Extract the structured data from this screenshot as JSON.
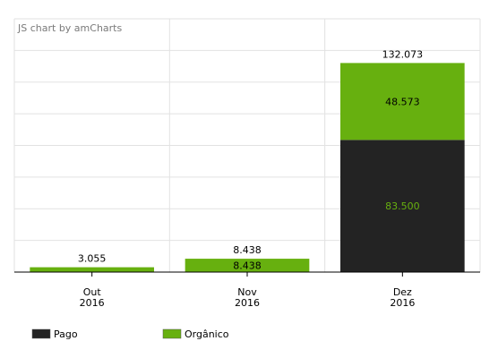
{
  "credit": "JS chart by amCharts",
  "colors": {
    "pago": "#232323",
    "organico": "#67b00f",
    "grid": "#e2e2e2",
    "axis": "#000000"
  },
  "chart_data": {
    "type": "bar",
    "stacked": true,
    "categories": [
      [
        "Out",
        "2016"
      ],
      [
        "Nov",
        "2016"
      ],
      [
        "Dez",
        "2016"
      ]
    ],
    "series": [
      {
        "name": "Pago",
        "color": "#232323",
        "values": [
          0,
          0,
          83.5
        ],
        "labels": [
          "",
          "",
          "83.500"
        ],
        "label_color": "#67b00f"
      },
      {
        "name": "Orgânico",
        "color": "#67b00f",
        "values": [
          3.055,
          8.438,
          48.573
        ],
        "labels": [
          "",
          "8.438",
          "48.573"
        ],
        "label_color": "#000000"
      }
    ],
    "totals": [
      "3.055",
      "8.438",
      "132.073"
    ],
    "ylim": [
      0,
      160
    ],
    "grid": true,
    "legend": "bottom-left"
  }
}
